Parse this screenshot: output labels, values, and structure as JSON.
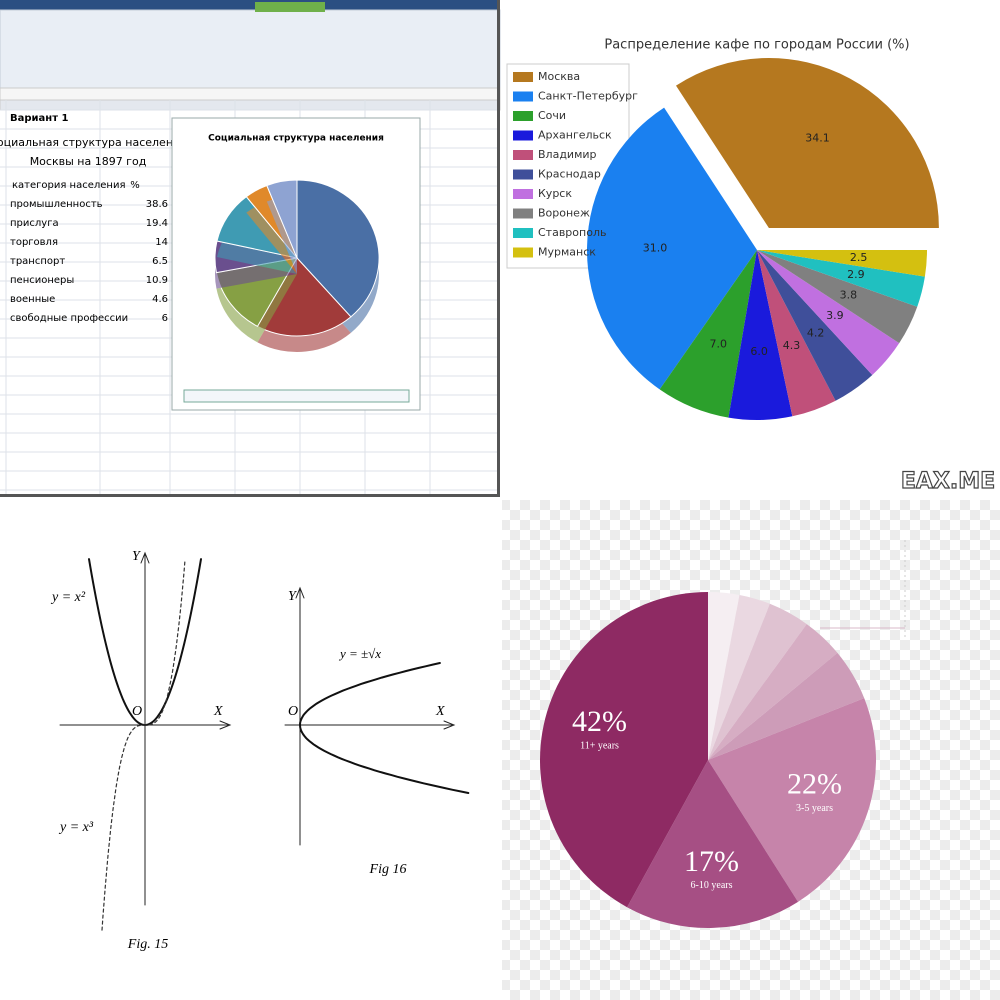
{
  "chart_data": [
    {
      "type": "pie",
      "title": "Социальная структура населения",
      "categories": [
        "промышленность",
        "прислуга",
        "торговля",
        "транспорт",
        "пенсионеры",
        "военные",
        "свободные профессии"
      ],
      "values": [
        38.6,
        19.4,
        14,
        6.5,
        10.9,
        4.6,
        6
      ],
      "colors": [
        "#4a6fa5",
        "#a13b3a",
        "#86a044",
        "#6a4f8e",
        "#3f9bb3",
        "#e0892a",
        "#8ea3d2"
      ]
    },
    {
      "type": "pie",
      "title": "Распределение кафе по городам России (%)",
      "categories": [
        "Москва",
        "Санкт-Петербург",
        "Сочи",
        "Архангельск",
        "Владимир",
        "Краснодар",
        "Курск",
        "Воронеж",
        "Ставрополь",
        "Мурманск"
      ],
      "values": [
        34.1,
        31.0,
        7.0,
        6.0,
        4.3,
        4.2,
        3.9,
        3.8,
        2.9,
        2.5
      ],
      "value_labels": [
        "34.1",
        "31.0",
        "7.0",
        "6.0",
        "4.3",
        "4.2",
        "3.9",
        "3.8",
        "2.9",
        "2.5"
      ],
      "colors": [
        "#b5781f",
        "#1a80f0",
        "#2ca02c",
        "#1a1adc",
        "#c0507a",
        "#3f4f9a",
        "#c070e0",
        "#808080",
        "#20c0c0",
        "#d4c010"
      ],
      "legend": "upper left"
    },
    {
      "type": "pie",
      "categories": [
        null,
        null,
        null,
        null,
        null,
        "3-5 years",
        "6-10 years",
        "11+ years"
      ],
      "values": [
        3,
        3,
        4,
        4,
        5,
        22,
        17,
        42
      ],
      "value_labels": [
        null,
        null,
        null,
        null,
        null,
        "22%",
        "17%",
        "42%"
      ],
      "colors": [
        "#f5eef2",
        "#ead8e1",
        "#dfc2d1",
        "#d6adc3",
        "#cd9cb8",
        "#c684aa",
        "#a64f84",
        "#8e2a63"
      ]
    }
  ],
  "excel": {
    "sheet_title": "Вариант 1",
    "table_title": [
      "Социальная структура населения",
      "Москвы на 1897 год"
    ],
    "header": [
      "категория населения",
      "%"
    ]
  },
  "figures": {
    "fig15": {
      "caption": "Fig. 15",
      "y_axis": "Y",
      "x_axis": "X",
      "origin": "O",
      "curve_a": "y = x²",
      "curve_b": "y = x³"
    },
    "fig16": {
      "caption": "Fig 16",
      "y_axis": "Y",
      "x_axis": "X",
      "origin": "O",
      "curve": "y = ±√x"
    }
  },
  "watermark": "EAX.ME"
}
